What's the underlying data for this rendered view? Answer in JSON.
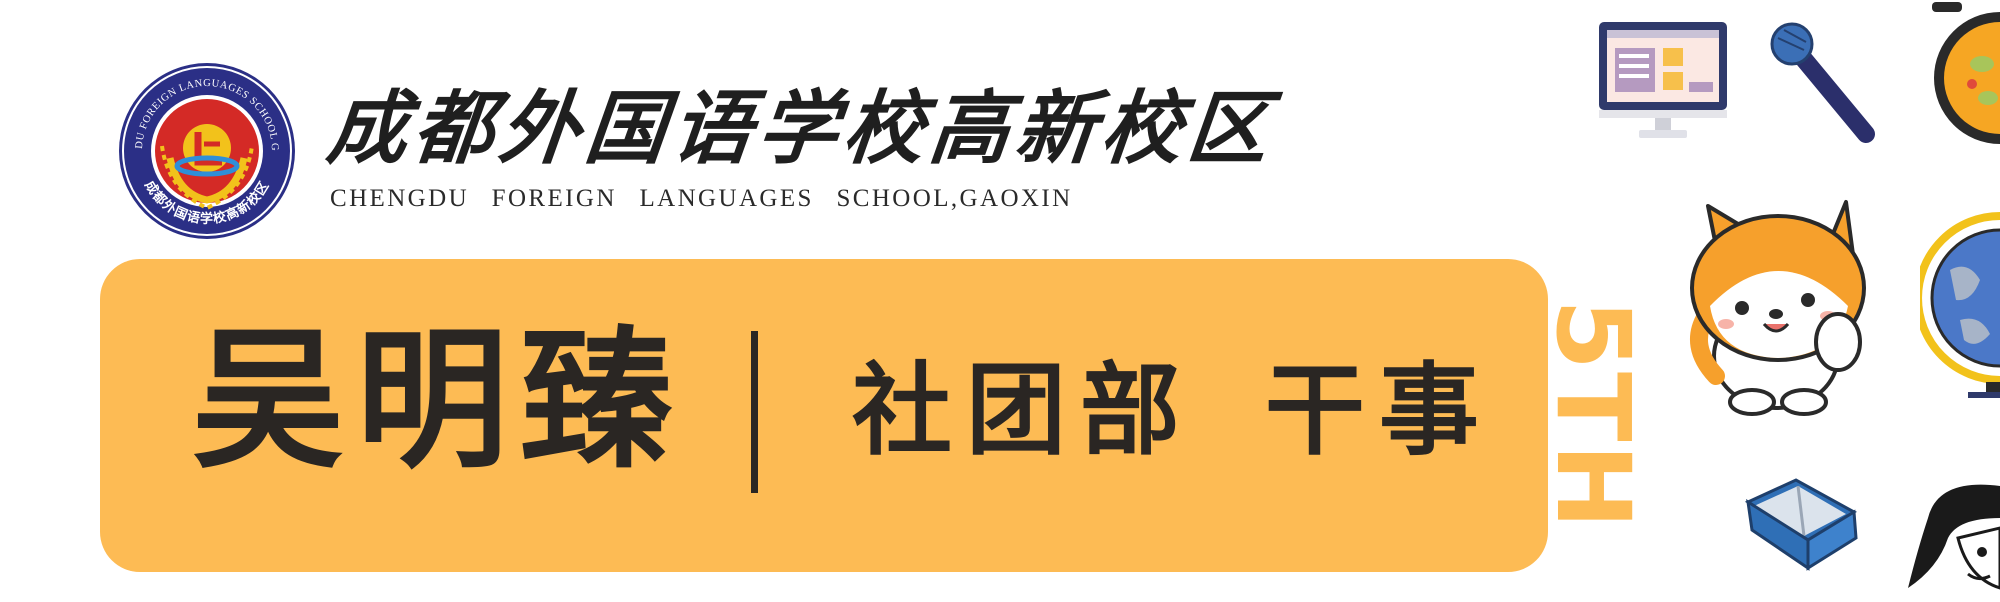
{
  "school": {
    "name_cn": "成都外国语学校高新校区",
    "name_en": "CHENGDU FOREIGN LANGUAGES SCHOOL,GAOXIN",
    "logo": {
      "ring_text_top": "CHENGDU FOREIGN LANGUAGES SCHOOL GAOXIN",
      "ring_text_bottom": "成都外国语学校高新校区"
    }
  },
  "banner": {
    "person_name": "吴明臻",
    "role": "社团部 干事"
  },
  "tag": {
    "text": "5TH"
  },
  "decorations": {
    "icons": [
      "monitor-icon",
      "microphone-icon",
      "pan-icon",
      "shiba-dog-icon",
      "globe-icon",
      "book-icon",
      "anime-character-icon"
    ]
  },
  "colors": {
    "banner": "#fdbb54",
    "text_dark": "#2a2623",
    "logo_navy": "#2b2f86",
    "logo_red": "#d42a26",
    "logo_gold": "#f2c21b"
  }
}
